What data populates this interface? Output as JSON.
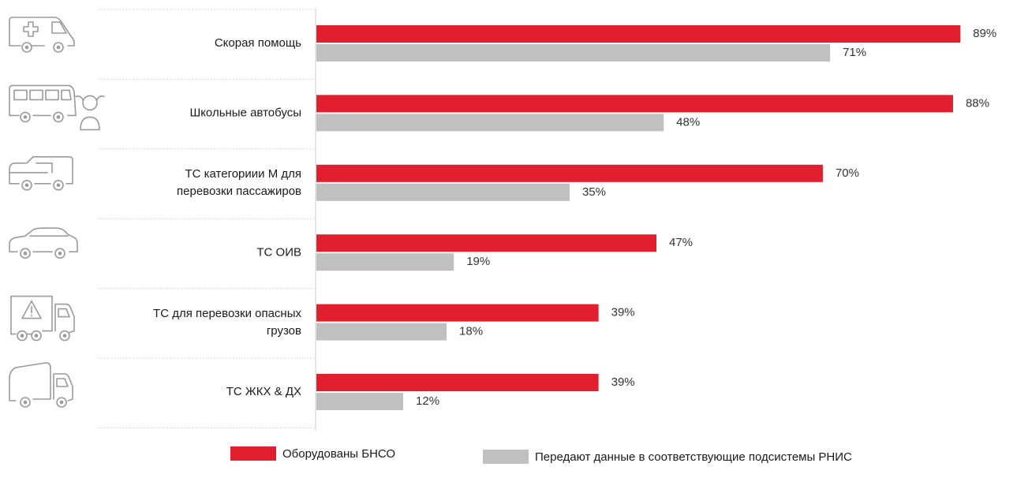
{
  "colors": {
    "series_red": "#e21f2f",
    "series_gray": "#c0c0c0",
    "icon_stroke": "#9a9a9a",
    "separator": "#cfcfcf",
    "axis": "#c8c8c8"
  },
  "chart_data": {
    "type": "bar",
    "orientation": "horizontal",
    "categories": [
      [
        "Скорая помощь"
      ],
      [
        "Школьные автобусы"
      ],
      [
        "ТС категориии М для",
        "перевозки пассажиров"
      ],
      [
        "ТС ОИВ"
      ],
      [
        "ТС для перевозки опасных",
        "грузов"
      ],
      [
        "ТС ЖКХ & ДХ"
      ]
    ],
    "icons": [
      "ambulance-icon",
      "school-bus-icon",
      "van-icon",
      "car-icon",
      "hazmat-truck-icon",
      "utility-truck-icon"
    ],
    "series": [
      {
        "name": "Оборудованы БНСО",
        "values": [
          89,
          88,
          70,
          47,
          39,
          39
        ],
        "labels": [
          "89%",
          "88%",
          "70%",
          "47%",
          "39%",
          "39%"
        ]
      },
      {
        "name": "Передают данные в соответствующие подсистемы РНИС",
        "values": [
          71,
          48,
          35,
          19,
          18,
          12
        ],
        "labels": [
          "71%",
          "48%",
          "35%",
          "19%",
          "18%",
          "12%"
        ]
      }
    ],
    "xlim": [
      0,
      100
    ],
    "legend_position": "bottom",
    "grid": false
  }
}
